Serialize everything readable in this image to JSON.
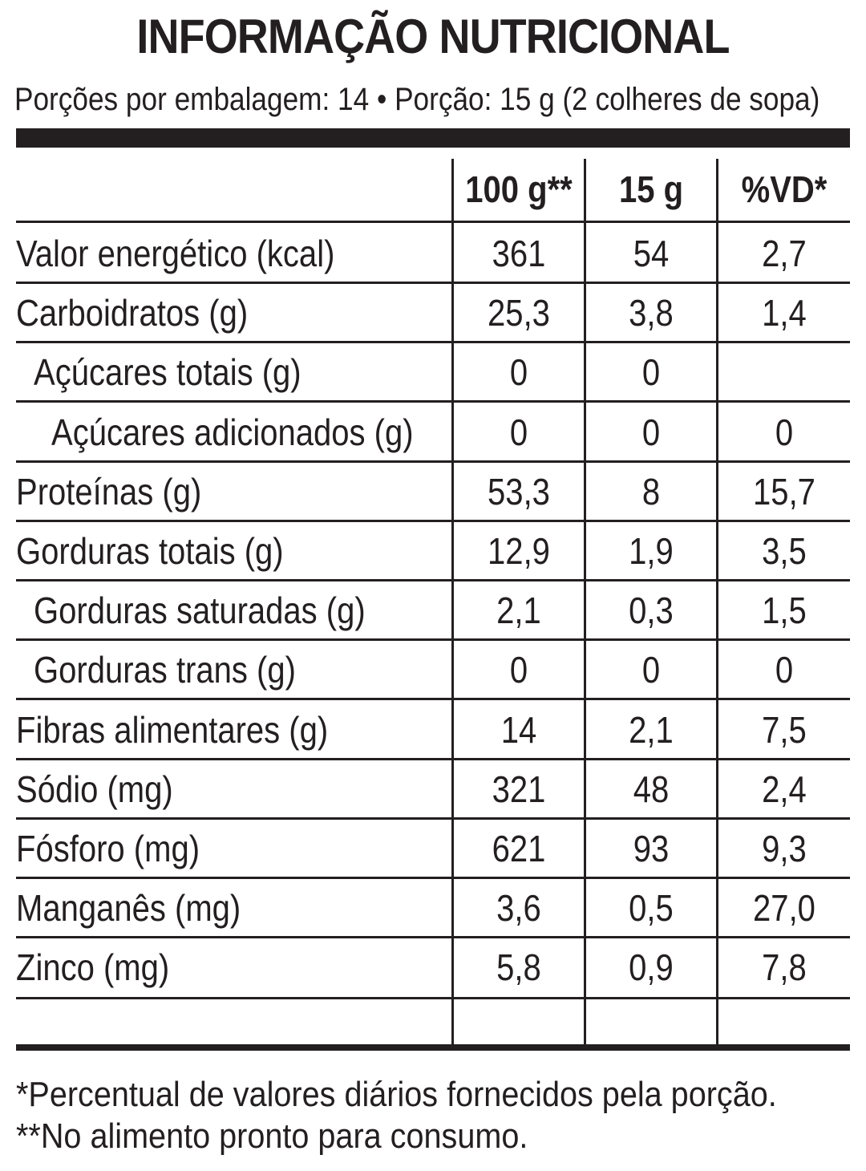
{
  "title": "INFORMAÇÃO NUTRICIONAL",
  "serving_info": "Porções por embalagem: 14 • Porção: 15 g (2 colheres de sopa)",
  "columns": [
    "100 g**",
    "15 g",
    "%VD*"
  ],
  "rows": [
    {
      "name": "Valor energético (kcal)",
      "indent": 0,
      "v100": "361",
      "vPortion": "54",
      "vd": "2,7"
    },
    {
      "name": "Carboidratos (g)",
      "indent": 0,
      "v100": "25,3",
      "vPortion": "3,8",
      "vd": "1,4"
    },
    {
      "name": "Açúcares totais (g)",
      "indent": 1,
      "v100": "0",
      "vPortion": "0",
      "vd": ""
    },
    {
      "name": "Açúcares adicionados (g)",
      "indent": 2,
      "v100": "0",
      "vPortion": "0",
      "vd": "0"
    },
    {
      "name": "Proteínas (g)",
      "indent": 0,
      "v100": "53,3",
      "vPortion": "8",
      "vd": "15,7"
    },
    {
      "name": "Gorduras totais (g)",
      "indent": 0,
      "v100": "12,9",
      "vPortion": "1,9",
      "vd": "3,5"
    },
    {
      "name": "Gorduras saturadas (g)",
      "indent": 1,
      "v100": "2,1",
      "vPortion": "0,3",
      "vd": "1,5"
    },
    {
      "name": "Gorduras trans (g)",
      "indent": 1,
      "v100": "0",
      "vPortion": "0",
      "vd": "0"
    },
    {
      "name": "Fibras alimentares (g)",
      "indent": 0,
      "v100": "14",
      "vPortion": "2,1",
      "vd": "7,5"
    },
    {
      "name": "Sódio (mg)",
      "indent": 0,
      "v100": "321",
      "vPortion": "48",
      "vd": "2,4"
    },
    {
      "name": "Fósforo (mg)",
      "indent": 0,
      "v100": "621",
      "vPortion": "93",
      "vd": "9,3"
    },
    {
      "name": "Manganês (mg)",
      "indent": 0,
      "v100": "3,6",
      "vPortion": "0,5",
      "vd": "27,0"
    },
    {
      "name": "Zinco (mg)",
      "indent": 0,
      "v100": "5,8",
      "vPortion": "0,9",
      "vd": "7,8"
    }
  ],
  "footnotes": [
    "*Percentual de valores diários fornecidos pela porção.",
    "**No alimento pronto para consumo."
  ]
}
